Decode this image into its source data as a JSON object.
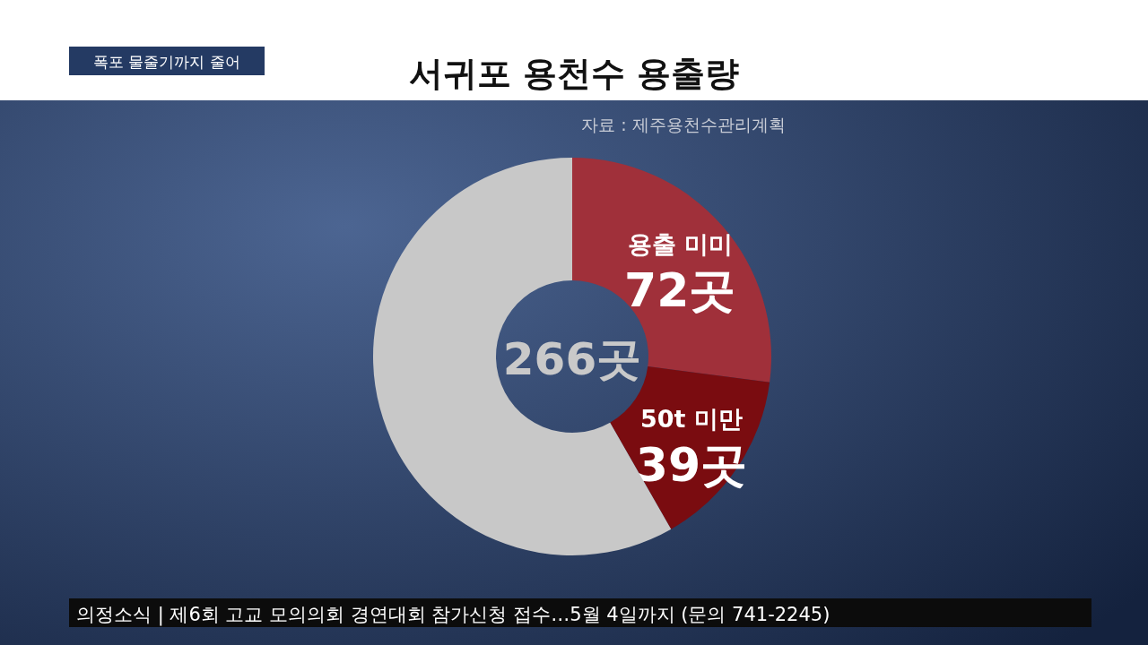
{
  "chart_data": {
    "type": "donut",
    "title": "서귀포 용천수 용출량",
    "subtitle": "폭포 물줄기까지 줄어",
    "categories": [
      "용출 미미",
      "50t 미만",
      null
    ],
    "values": [
      72,
      39,
      155
    ],
    "colors": [
      "#a0303a",
      "#7a0c10",
      "#c8c8c8"
    ],
    "value_labels": [
      "72곳",
      "39곳",
      null
    ],
    "annotations": [
      "자료 : 제주용천수관리계획",
      "266곳",
      "의정소식 | 제6회 고교 모의의회 경연대회 참가신청 접수…5월 4일까지 (문의 741-2245)"
    ]
  }
}
